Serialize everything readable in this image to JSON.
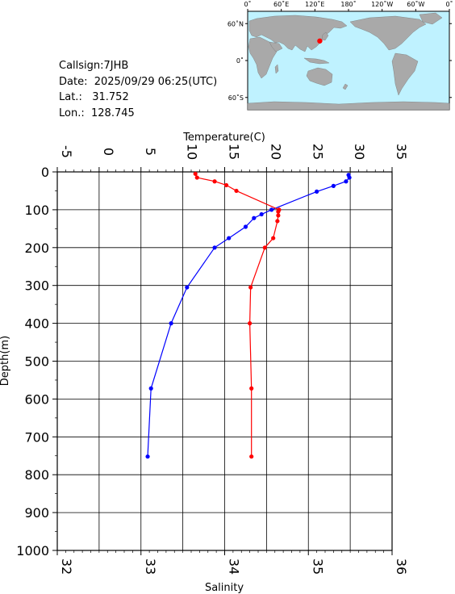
{
  "station": {
    "callsign_label": "Callsign:",
    "callsign": "7JHB",
    "date_label": "Date:",
    "date": "2025/09/29 06:25(UTC)",
    "lat_label": "Lat.:",
    "lat": "31.752",
    "lon_label": "Lon.:",
    "lon": "128.745"
  },
  "map": {
    "lon_ticks": [
      "0˚",
      "60˚E",
      "120˚E",
      "180˚",
      "120˚W",
      "60˚W",
      "0˚"
    ],
    "lat_ticks": [
      "60˚N",
      "0˚",
      "60˚S"
    ],
    "ocean_color": "#bff2ff",
    "land_color": "#a9a9a9",
    "marker_color": "#ff0000",
    "marker_lat": 31.752,
    "marker_lon": 128.745
  },
  "chart_data": {
    "type": "line",
    "top_axis_label": "Temperature(C)",
    "bottom_axis_label": "Salinity",
    "ylabel": "Depth(m)",
    "temperature_ticks": [
      "-5",
      "0",
      "5",
      "10",
      "15",
      "20",
      "25",
      "30",
      "35"
    ],
    "salinity_ticks": [
      "32",
      "33",
      "34",
      "35",
      "36"
    ],
    "depth_ticks": [
      "0",
      "100",
      "200",
      "300",
      "400",
      "500",
      "600",
      "700",
      "800",
      "900",
      "1000"
    ],
    "temperature_range": [
      -5,
      35
    ],
    "salinity_range": [
      32,
      36
    ],
    "depth_range": [
      0,
      1000
    ],
    "series": [
      {
        "quantity": "temperature",
        "color": "#0000ff",
        "depth": [
          8,
          15,
          25,
          37,
          52,
          100,
          112,
          122,
          145,
          175,
          200,
          305,
          400,
          572,
          752
        ],
        "values": [
          29.8,
          29.9,
          29.5,
          28.0,
          26.0,
          20.6,
          19.4,
          18.5,
          17.5,
          15.5,
          13.8,
          10.5,
          8.6,
          6.2,
          5.8
        ]
      },
      {
        "quantity": "salinity",
        "color": "#ff0000",
        "depth": [
          5,
          15,
          25,
          35,
          50,
          100,
          105,
          115,
          130,
          175,
          200,
          305,
          400,
          572,
          752
        ],
        "values": [
          33.65,
          33.67,
          33.88,
          34.02,
          34.14,
          34.65,
          34.64,
          34.64,
          34.63,
          34.58,
          34.48,
          34.31,
          34.3,
          34.32,
          34.32
        ]
      }
    ]
  }
}
